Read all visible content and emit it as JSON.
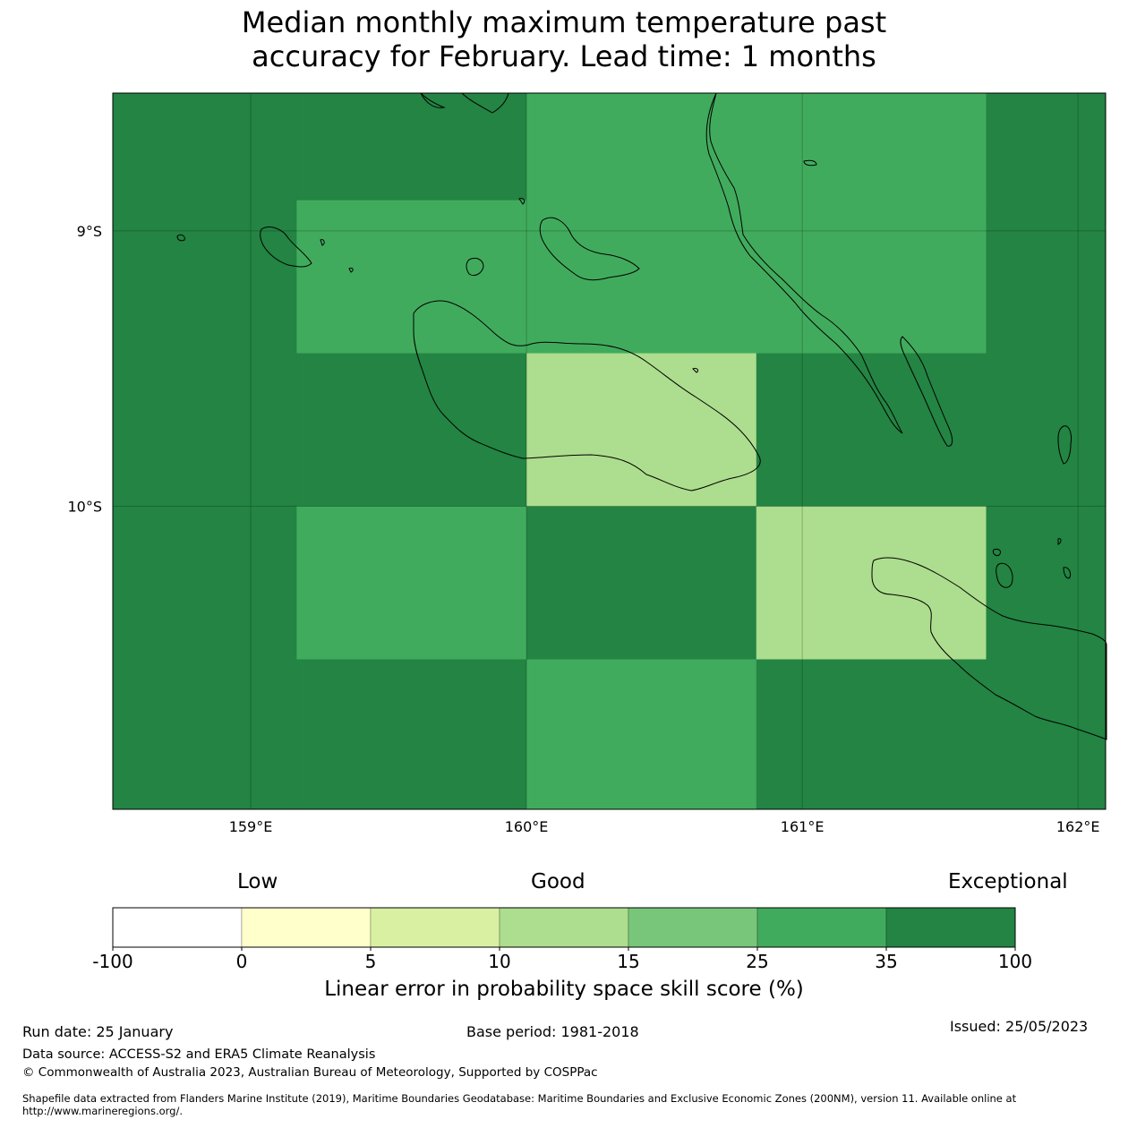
{
  "title": {
    "line1": "Median monthly maximum temperature past",
    "line2": "accuracy for February. Lead time: 1 months"
  },
  "map": {
    "lon_range": [
      158.5,
      162.1
    ],
    "lat_range": [
      -11.1,
      -8.5
    ],
    "lon_ticks": [
      {
        "value": 159,
        "label": "159°E"
      },
      {
        "value": 160,
        "label": "160°E"
      },
      {
        "value": 161,
        "label": "161°E"
      },
      {
        "value": 162,
        "label": "162°E"
      }
    ],
    "lat_ticks": [
      {
        "value": -9,
        "label": "9°S"
      },
      {
        "value": -10,
        "label": "10°S"
      }
    ],
    "grid_cell_deg": [
      0.8333,
      0.5556
    ],
    "cells": [
      {
        "lon0": 158.5,
        "lon1": 159.1667,
        "lat0": -8.5,
        "lat1": -8.8889,
        "category": 6
      },
      {
        "lon0": 159.1667,
        "lon1": 160.0,
        "lat0": -8.5,
        "lat1": -8.8889,
        "category": 6
      },
      {
        "lon0": 160.0,
        "lon1": 160.8333,
        "lat0": -8.5,
        "lat1": -8.8889,
        "category": 5
      },
      {
        "lon0": 160.8333,
        "lon1": 161.6667,
        "lat0": -8.5,
        "lat1": -8.8889,
        "category": 5
      },
      {
        "lon0": 161.6667,
        "lon1": 162.1,
        "lat0": -8.5,
        "lat1": -8.8889,
        "category": 6
      },
      {
        "lon0": 158.5,
        "lon1": 159.1667,
        "lat0": -8.8889,
        "lat1": -9.4444,
        "category": 6
      },
      {
        "lon0": 159.1667,
        "lon1": 160.0,
        "lat0": -8.8889,
        "lat1": -9.4444,
        "category": 5
      },
      {
        "lon0": 160.0,
        "lon1": 160.8333,
        "lat0": -8.8889,
        "lat1": -9.4444,
        "category": 5
      },
      {
        "lon0": 160.8333,
        "lon1": 161.6667,
        "lat0": -8.8889,
        "lat1": -9.4444,
        "category": 5
      },
      {
        "lon0": 161.6667,
        "lon1": 162.1,
        "lat0": -8.8889,
        "lat1": -9.4444,
        "category": 6
      },
      {
        "lon0": 158.5,
        "lon1": 159.1667,
        "lat0": -9.4444,
        "lat1": -10.0,
        "category": 6
      },
      {
        "lon0": 159.1667,
        "lon1": 160.0,
        "lat0": -9.4444,
        "lat1": -10.0,
        "category": 6
      },
      {
        "lon0": 160.0,
        "lon1": 160.8333,
        "lat0": -9.4444,
        "lat1": -10.0,
        "category": 3
      },
      {
        "lon0": 160.8333,
        "lon1": 161.6667,
        "lat0": -9.4444,
        "lat1": -10.0,
        "category": 6
      },
      {
        "lon0": 161.6667,
        "lon1": 162.1,
        "lat0": -9.4444,
        "lat1": -10.0,
        "category": 6
      },
      {
        "lon0": 158.5,
        "lon1": 159.1667,
        "lat0": -10.0,
        "lat1": -10.5556,
        "category": 6
      },
      {
        "lon0": 159.1667,
        "lon1": 160.0,
        "lat0": -10.0,
        "lat1": -10.5556,
        "category": 5
      },
      {
        "lon0": 160.0,
        "lon1": 160.8333,
        "lat0": -10.0,
        "lat1": -10.5556,
        "category": 6
      },
      {
        "lon0": 160.8333,
        "lon1": 161.6667,
        "lat0": -10.0,
        "lat1": -10.5556,
        "category": 3
      },
      {
        "lon0": 161.6667,
        "lon1": 162.1,
        "lat0": -10.0,
        "lat1": -10.5556,
        "category": 6
      },
      {
        "lon0": 158.5,
        "lon1": 159.1667,
        "lat0": -10.5556,
        "lat1": -11.1,
        "category": 6
      },
      {
        "lon0": 159.1667,
        "lon1": 160.0,
        "lat0": -10.5556,
        "lat1": -11.1,
        "category": 6
      },
      {
        "lon0": 160.0,
        "lon1": 160.8333,
        "lat0": -10.5556,
        "lat1": -11.1,
        "category": 5
      },
      {
        "lon0": 160.8333,
        "lon1": 161.6667,
        "lat0": -10.5556,
        "lat1": -11.1,
        "category": 6
      },
      {
        "lon0": 161.6667,
        "lon1": 162.1,
        "lat0": -10.5556,
        "lat1": -11.1,
        "category": 6
      }
    ]
  },
  "legend": {
    "words": [
      "Low",
      "Good",
      "Exceptional"
    ],
    "bins": [
      {
        "from": -100,
        "to": 0,
        "color": "#ffffff"
      },
      {
        "from": 0,
        "to": 5,
        "color": "#ffffcc"
      },
      {
        "from": 5,
        "to": 10,
        "color": "#d9f0a3"
      },
      {
        "from": 10,
        "to": 15,
        "color": "#addd8e"
      },
      {
        "from": 15,
        "to": 25,
        "color": "#78c679"
      },
      {
        "from": 25,
        "to": 35,
        "color": "#41ab5d"
      },
      {
        "from": 35,
        "to": 100,
        "color": "#238443"
      }
    ],
    "tick_labels": [
      "-100",
      "0",
      "5",
      "10",
      "15",
      "25",
      "35",
      "100"
    ],
    "label": "Linear error in probability space skill score (%)"
  },
  "footer": {
    "run_date": "Run date: 25 January",
    "base_period": "Base period: 1981-2018",
    "issued": "Issued: 25/05/2023",
    "data_source": "Data source: ACCESS-S2 and ERA5 Climate Reanalysis",
    "copyright": "© Commonwealth of Australia 2023, Australian Bureau of Meteorology, Supported by COSPPac",
    "shapefile": "Shapefile data extracted from Flanders Marine Institute (2019), Maritime Boundaries Geodatabase: Maritime Boundaries and Exclusive Economic Zones (200NM), version 11. Available online at http://www.marineregions.org/."
  }
}
